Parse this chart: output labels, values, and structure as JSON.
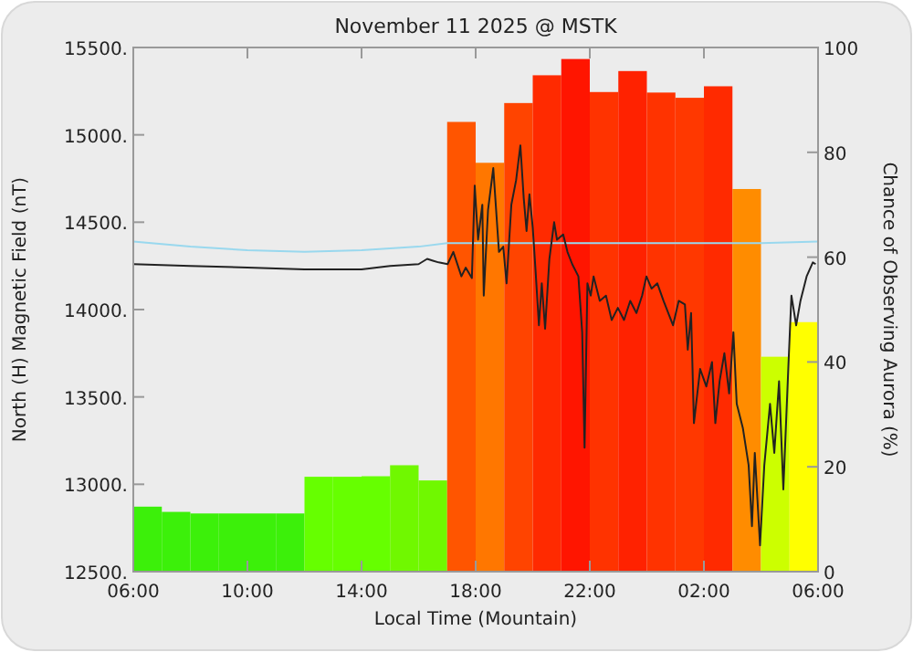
{
  "chart_data": {
    "type": "bar",
    "title": "November 11 2025 @ MSTK",
    "xlabel": "Local Time (Mountain)",
    "ylabel": "North (H) Magnetic Field (nT)",
    "y2label": "Chance of Observing Aurora (%)",
    "xlim": [
      "2025-11-11T06:00",
      "2025-11-12T06:00"
    ],
    "xticks": [
      {
        "value": "2025-11-11T06:00",
        "label": "06:00"
      },
      {
        "value": "2025-11-11T10:00",
        "label": "10:00"
      },
      {
        "value": "2025-11-11T14:00",
        "label": "14:00"
      },
      {
        "value": "2025-11-11T18:00",
        "label": "18:00"
      },
      {
        "value": "2025-11-11T22:00",
        "label": "22:00"
      },
      {
        "value": "2025-11-12T02:00",
        "label": "02:00"
      },
      {
        "value": "2025-11-12T06:00",
        "label": "06:00"
      }
    ],
    "ylim": [
      12500,
      15500
    ],
    "yticks": [
      {
        "value": 12500,
        "label": "12500."
      },
      {
        "value": 13000,
        "label": "13000."
      },
      {
        "value": 13500,
        "label": "13500."
      },
      {
        "value": 14000,
        "label": "14000."
      },
      {
        "value": 14500,
        "label": "14500."
      },
      {
        "value": 15000,
        "label": "15000."
      },
      {
        "value": 15500,
        "label": "15500."
      }
    ],
    "y2lim": [
      0,
      100
    ],
    "y2ticks": [
      0,
      20,
      40,
      60,
      80,
      100
    ],
    "grid": false,
    "series": [
      {
        "axis": "y2",
        "x": [
          "2025-11-11T06:30",
          "2025-11-11T07:30",
          "2025-11-11T08:30",
          "2025-11-11T09:30",
          "2025-11-11T10:30",
          "2025-11-11T11:30",
          "2025-11-11T12:30",
          "2025-11-11T13:30",
          "2025-11-11T14:30",
          "2025-11-11T15:30",
          "2025-11-11T16:30",
          "2025-11-11T17:30",
          "2025-11-11T18:30",
          "2025-11-11T19:30",
          "2025-11-11T20:30",
          "2025-11-11T21:30",
          "2025-11-11T22:30",
          "2025-11-11T23:30",
          "2025-11-12T00:30",
          "2025-11-12T01:30",
          "2025-11-12T02:30",
          "2025-11-12T03:30",
          "2025-11-12T04:30",
          "2025-11-12T05:30"
        ],
        "values": [
          12.4,
          11.4,
          11.1,
          11.1,
          11.1,
          11.1,
          18.1,
          18.1,
          18.2,
          20.3,
          17.4,
          85.8,
          78,
          89.4,
          94.7,
          97.8,
          91.5,
          95.5,
          91.4,
          90.4,
          92.6,
          73,
          41,
          47.6
        ],
        "colors": [
          "#3cf00a",
          "#3cf00a",
          "#3cf00a",
          "#3cf00a",
          "#3cf00a",
          "#3cf00a",
          "#66ff00",
          "#66ff00",
          "#66ff00",
          "#70f800",
          "#70f800",
          "#ff5500",
          "#ff7700",
          "#ff4400",
          "#ff2a00",
          "#ff1500",
          "#ff3300",
          "#ff2200",
          "#ff3300",
          "#ff3800",
          "#ff2a00",
          "#ff8c00",
          "#ccff00",
          "#ffff00"
        ]
      },
      {
        "type": "line",
        "color": "#99d8ee",
        "x": [
          "2025-11-11T06:00",
          "2025-11-11T08:00",
          "2025-11-11T10:00",
          "2025-11-11T12:00",
          "2025-11-11T14:00",
          "2025-11-11T16:00",
          "2025-11-11T17:00",
          "2025-11-11T20:00",
          "2025-11-12T00:00",
          "2025-11-12T04:00",
          "2025-11-12T06:00"
        ],
        "values": [
          14390,
          14360,
          14340,
          14330,
          14340,
          14360,
          14380,
          14380,
          14380,
          14380,
          14390
        ]
      },
      {
        "type": "line",
        "color": "#222222",
        "x": [
          "2025-11-11T06:00",
          "2025-11-11T08:00",
          "2025-11-11T10:00",
          "2025-11-11T12:00",
          "2025-11-11T14:00",
          "2025-11-11T15:00",
          "2025-11-11T16:00",
          "2025-11-11T16:18",
          "2025-11-11T16:30",
          "2025-11-11T16:42",
          "2025-11-11T17:01",
          "2025-11-11T17:13",
          "2025-11-11T17:30",
          "2025-11-11T17:39",
          "2025-11-11T17:52",
          "2025-11-11T17:58",
          "2025-11-11T18:05",
          "2025-11-11T18:14",
          "2025-11-11T18:17",
          "2025-11-11T18:26",
          "2025-11-11T18:37",
          "2025-11-11T18:43",
          "2025-11-11T18:49",
          "2025-11-11T18:58",
          "2025-11-11T19:05",
          "2025-11-11T19:15",
          "2025-11-11T19:25",
          "2025-11-11T19:34",
          "2025-11-11T19:41",
          "2025-11-11T19:47",
          "2025-11-11T19:53",
          "2025-11-11T20:00",
          "2025-11-11T20:06",
          "2025-11-11T20:13",
          "2025-11-11T20:19",
          "2025-11-11T20:26",
          "2025-11-11T20:35",
          "2025-11-11T20:45",
          "2025-11-11T20:51",
          "2025-11-11T21:04",
          "2025-11-11T21:13",
          "2025-11-11T21:23",
          "2025-11-11T21:36",
          "2025-11-11T21:44",
          "2025-11-11T21:49",
          "2025-11-11T21:55",
          "2025-11-11T22:02",
          "2025-11-11T22:08",
          "2025-11-11T22:21",
          "2025-11-11T22:34",
          "2025-11-11T22:46",
          "2025-11-11T22:59",
          "2025-11-11T23:12",
          "2025-11-11T23:25",
          "2025-11-11T23:38",
          "2025-11-11T23:50",
          "2025-11-11T23:59",
          "2025-11-12T00:10",
          "2025-11-12T00:22",
          "2025-11-12T00:35",
          "2025-11-12T00:55",
          "2025-11-12T01:07",
          "2025-11-12T01:20",
          "2025-11-12T01:26",
          "2025-11-12T01:33",
          "2025-11-12T01:39",
          "2025-11-12T01:52",
          "2025-11-12T02:05",
          "2025-11-12T02:17",
          "2025-11-12T02:24",
          "2025-11-12T02:33",
          "2025-11-12T02:43",
          "2025-11-12T02:53",
          "2025-11-12T03:02",
          "2025-11-12T03:09",
          "2025-11-12T03:22",
          "2025-11-12T03:34",
          "2025-11-12T03:41",
          "2025-11-12T03:47",
          "2025-11-12T03:58",
          "2025-11-12T04:07",
          "2025-11-12T04:19",
          "2025-11-12T04:28",
          "2025-11-12T04:38",
          "2025-11-12T04:47",
          "2025-11-12T04:58",
          "2025-11-12T05:04",
          "2025-11-12T05:14",
          "2025-11-12T05:23",
          "2025-11-12T05:36",
          "2025-11-12T05:49",
          "2025-11-12T05:55"
        ],
        "values": [
          14260,
          14250,
          14240,
          14230,
          14230,
          14250,
          14260,
          14290,
          14280,
          14270,
          14260,
          14330,
          14190,
          14240,
          14180,
          14710,
          14400,
          14600,
          14080,
          14570,
          14810,
          14570,
          14330,
          14360,
          14150,
          14600,
          14740,
          14940,
          14640,
          14450,
          14660,
          14470,
          14220,
          13910,
          14150,
          13890,
          14290,
          14500,
          14400,
          14430,
          14330,
          14260,
          14190,
          13870,
          13210,
          14150,
          14080,
          14190,
          14050,
          14080,
          13940,
          14010,
          13940,
          14050,
          13980,
          14080,
          14190,
          14120,
          14150,
          14050,
          13910,
          14050,
          14030,
          13770,
          13980,
          13350,
          13660,
          13560,
          13700,
          13350,
          13590,
          13750,
          13520,
          13870,
          13460,
          13320,
          13110,
          12760,
          13180,
          12650,
          13110,
          13460,
          13180,
          13590,
          12970,
          13700,
          14080,
          13910,
          14050,
          14190,
          14270,
          14260
        ]
      }
    ]
  }
}
